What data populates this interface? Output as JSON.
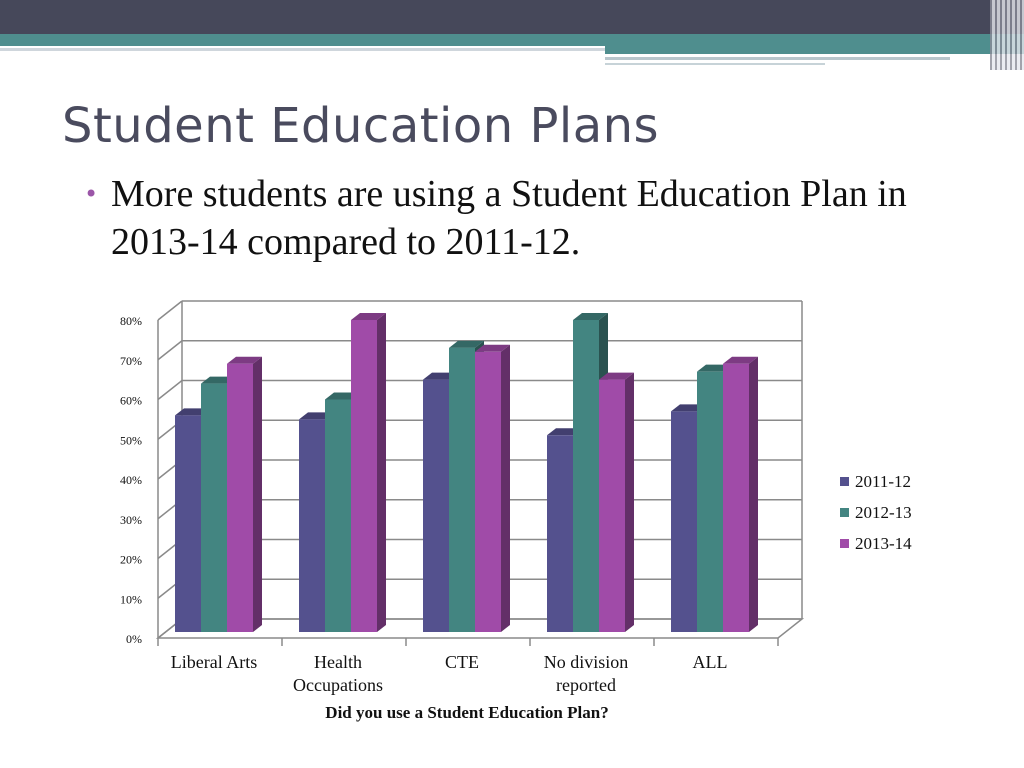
{
  "slide": {
    "title": "Student Education Plans",
    "bullet": "More students are using a Student Education Plan in 2013-14 compared to 2011-12."
  },
  "colors": {
    "header_dark": "#46485a",
    "header_teal": "#4f8e8e",
    "title_text": "#4a4b5e",
    "bullet": "#9b56a8"
  },
  "chart_data": {
    "type": "bar",
    "title": "",
    "xlabel": "Did you use a Student Education Plan?",
    "ylabel": "",
    "ylim": [
      0,
      80
    ],
    "yticks": [
      "0%",
      "10%",
      "20%",
      "30%",
      "40%",
      "50%",
      "60%",
      "70%",
      "80%"
    ],
    "grid": true,
    "legend_position": "right",
    "categories": [
      "Liberal Arts",
      "Health Occupations",
      "CTE",
      "No division reported",
      "ALL"
    ],
    "series": [
      {
        "name": "2011-12",
        "color": "#54518e",
        "values": [
          56,
          55,
          65,
          51,
          57
        ]
      },
      {
        "name": "2012-13",
        "color": "#438581",
        "values": [
          64,
          60,
          73,
          80,
          67
        ]
      },
      {
        "name": "2013-14",
        "color": "#a04ba8",
        "values": [
          69,
          80,
          72,
          65,
          69
        ]
      }
    ]
  }
}
